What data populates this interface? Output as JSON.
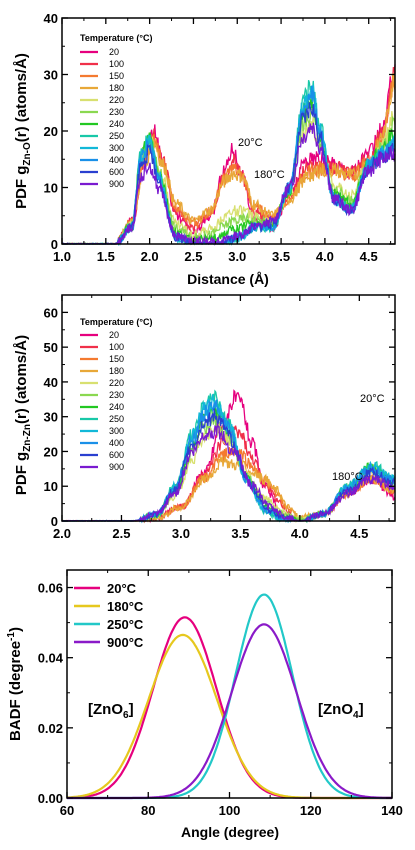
{
  "temperature_colors": {
    "20": "#e6007e",
    "100": "#f0304a",
    "150": "#f47a30",
    "180": "#e8a838",
    "220": "#d8e070",
    "230": "#8ad850",
    "240": "#22c822",
    "250": "#18c8a8",
    "300": "#12b8d8",
    "400": "#1a90e8",
    "600": "#2a40d0",
    "900": "#7a1ad0"
  },
  "badf_colors": {
    "20°C": "#e6007e",
    "180°C": "#e6c81e",
    "250°C": "#22c8c8",
    "900°C": "#8a1ac8"
  },
  "chart_data": [
    {
      "type": "line",
      "ylabel_main": "PDF g",
      "ylabel_sub": "Zn-O",
      "ylabel_tail": "(r) (atoms/Å)",
      "xlabel": "Distance (Å)",
      "xlim": [
        1.0,
        4.8
      ],
      "ylim": [
        0,
        40
      ],
      "xticks": [
        "1.0",
        "1.5",
        "2.0",
        "2.5",
        "3.0",
        "3.5",
        "4.0",
        "4.5"
      ],
      "yticks": [
        "0",
        "10",
        "20",
        "30",
        "40"
      ],
      "legend_title": "Temperature (°C)",
      "legend": [
        "20",
        "100",
        "150",
        "180",
        "220",
        "230",
        "240",
        "250",
        "300",
        "400",
        "600",
        "900"
      ],
      "legend_position": "top-left",
      "annotations": [
        "20°C",
        "180°C"
      ],
      "series": [
        {
          "name": "20",
          "x": [
            1.0,
            1.4,
            1.6,
            1.8,
            1.95,
            2.05,
            2.15,
            2.3,
            2.5,
            2.7,
            2.85,
            2.95,
            3.05,
            3.2,
            3.4,
            3.6,
            3.8,
            3.95,
            4.1,
            4.3,
            4.5,
            4.65,
            4.8
          ],
          "y": [
            0,
            0,
            0,
            4,
            16,
            20,
            15,
            5,
            2,
            5,
            13,
            17,
            12,
            4,
            3,
            9,
            15,
            15,
            14,
            13,
            16,
            20,
            31
          ]
        },
        {
          "name": "180",
          "x": [
            1.0,
            1.4,
            1.6,
            1.8,
            1.95,
            2.05,
            2.15,
            2.3,
            2.5,
            2.7,
            2.85,
            2.95,
            3.05,
            3.2,
            3.4,
            3.6,
            3.8,
            3.95,
            4.1,
            4.3,
            4.5,
            4.65,
            4.8
          ],
          "y": [
            0,
            0,
            0,
            4,
            15,
            18,
            14,
            7,
            4,
            6,
            11,
            12.5,
            12,
            7,
            5,
            8,
            12,
            13,
            13,
            12,
            14,
            19,
            29
          ]
        },
        {
          "name": "250",
          "x": [
            1.0,
            1.4,
            1.6,
            1.8,
            1.9,
            2.0,
            2.1,
            2.3,
            2.5,
            2.8,
            3.0,
            3.2,
            3.4,
            3.6,
            3.75,
            3.85,
            3.95,
            4.1,
            4.3,
            4.5,
            4.65,
            4.8
          ],
          "y": [
            0,
            0,
            0,
            3,
            16,
            19,
            12,
            1,
            0,
            0,
            1,
            3,
            3,
            10,
            25,
            28,
            20,
            8,
            6,
            14,
            16,
            18
          ]
        },
        {
          "name": "900",
          "x": [
            1.0,
            1.4,
            1.6,
            1.8,
            1.9,
            2.0,
            2.1,
            2.3,
            2.5,
            2.8,
            3.0,
            3.2,
            3.4,
            3.6,
            3.75,
            3.85,
            3.95,
            4.1,
            4.3,
            4.5,
            4.65,
            4.8
          ],
          "y": [
            0,
            0,
            0,
            3,
            12,
            14,
            10,
            1.5,
            0.5,
            0.5,
            1.5,
            3,
            4,
            10,
            19,
            21,
            17,
            8,
            6,
            13,
            15,
            16
          ]
        }
      ]
    },
    {
      "type": "line",
      "ylabel_main": "PDF g",
      "ylabel_sub": "Zn-Zn",
      "ylabel_tail": "(r) (atoms/Å)",
      "xlabel": "",
      "xlim": [
        2.0,
        4.8
      ],
      "ylim": [
        0,
        65
      ],
      "xticks": [
        "2.0",
        "2.5",
        "3.0",
        "3.5",
        "4.0",
        "4.5"
      ],
      "yticks": [
        "0",
        "10",
        "20",
        "30",
        "40",
        "50",
        "60"
      ],
      "legend_title": "Temperature (°C)",
      "legend": [
        "20",
        "100",
        "150",
        "180",
        "220",
        "230",
        "240",
        "250",
        "300",
        "400",
        "600",
        "900"
      ],
      "legend_position": "top-left",
      "annotations": [
        "20°C",
        "180°C"
      ],
      "series": [
        {
          "name": "20",
          "x": [
            2.0,
            2.6,
            2.8,
            3.0,
            3.2,
            3.35,
            3.45,
            3.5,
            3.6,
            3.7,
            3.85,
            4.0,
            4.2,
            4.4,
            4.6,
            4.8
          ],
          "y": [
            0,
            0,
            1,
            4,
            14,
            28,
            35,
            34,
            22,
            10,
            2,
            0,
            2,
            8,
            12,
            7
          ]
        },
        {
          "name": "180",
          "x": [
            2.0,
            2.6,
            2.8,
            3.0,
            3.2,
            3.35,
            3.5,
            3.6,
            3.7,
            3.8,
            3.9,
            4.0,
            4.2,
            4.4,
            4.6,
            4.8
          ],
          "y": [
            0,
            0,
            1,
            4,
            12,
            17,
            16,
            14,
            12,
            9,
            4,
            1,
            2,
            8,
            12,
            9
          ]
        },
        {
          "name": "250",
          "x": [
            2.0,
            2.6,
            2.8,
            2.95,
            3.1,
            3.2,
            3.28,
            3.4,
            3.55,
            3.7,
            3.85,
            4.0,
            4.2,
            4.4,
            4.6,
            4.8
          ],
          "y": [
            0,
            0,
            2,
            10,
            25,
            33,
            35,
            28,
            12,
            3,
            0.5,
            0,
            2,
            10,
            16,
            12
          ]
        },
        {
          "name": "900",
          "x": [
            2.0,
            2.6,
            2.8,
            2.95,
            3.1,
            3.2,
            3.3,
            3.45,
            3.6,
            3.75,
            3.9,
            4.0,
            4.2,
            4.4,
            4.6,
            4.8
          ],
          "y": [
            0,
            0,
            2,
            8,
            20,
            25,
            26,
            20,
            10,
            4,
            1,
            0,
            2,
            8,
            12,
            10
          ]
        }
      ]
    },
    {
      "type": "line",
      "ylabel": "BADF (degree",
      "ylabel_sup": "-1",
      "ylabel_close": ")",
      "xlabel": "Angle (degree)",
      "xlim": [
        60,
        140
      ],
      "ylim": [
        0,
        0.065
      ],
      "xticks": [
        "60",
        "80",
        "100",
        "120",
        "140"
      ],
      "yticks": [
        "0.00",
        "0.02",
        "0.04",
        "0.06"
      ],
      "legend": [
        "20°C",
        "180°C",
        "250°C",
        "900°C"
      ],
      "legend_position": "top-left",
      "annotation_left": "[ZnO",
      "annotation_left_sub": "6",
      "annotation_right": "[ZnO",
      "annotation_right_sub": "4",
      "annotation_close": "]",
      "series": [
        {
          "name": "20°C",
          "center": 89,
          "sigma": 7.8,
          "peak": 0.0515
        },
        {
          "name": "180°C",
          "center": 88.5,
          "sigma": 8.4,
          "peak": 0.0465
        },
        {
          "name": "250°C",
          "center": 108.5,
          "sigma": 7.0,
          "peak": 0.058
        },
        {
          "name": "900°C",
          "center": 108.5,
          "sigma": 8.0,
          "peak": 0.0495
        }
      ]
    }
  ]
}
